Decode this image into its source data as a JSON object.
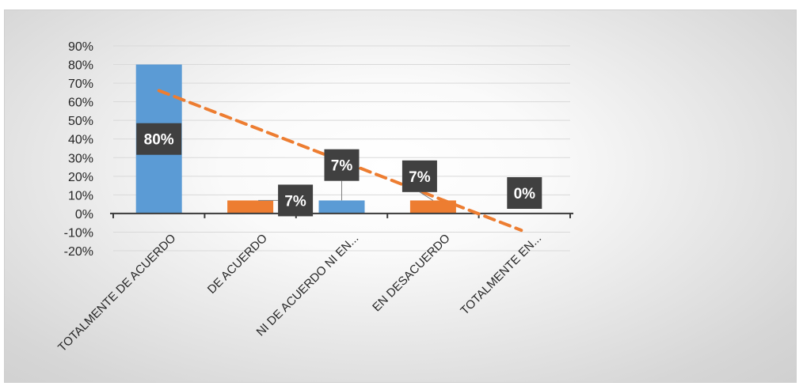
{
  "chart_data": {
    "type": "bar",
    "categories": [
      "TOTALMENTE DE ACUERDO",
      "DE ACUERDO",
      "NI DE ACUERDO NI EN...",
      "EN DESACUERDO",
      "TOTALMENTE EN..."
    ],
    "values": [
      80,
      7,
      7,
      7,
      0
    ],
    "data_labels": [
      "80%",
      "7%",
      "7%",
      "7%",
      "0%"
    ],
    "bar_colors": [
      "#5b9bd5",
      "#ed7d31",
      "#5b9bd5",
      "#ed7d31",
      "#5b9bd5"
    ],
    "ylim": [
      -20,
      90
    ],
    "y_ticks": [
      90,
      80,
      70,
      60,
      50,
      40,
      30,
      20,
      10,
      0,
      -10,
      -20
    ],
    "y_tick_labels": [
      "90%",
      "80%",
      "70%",
      "60%",
      "50%",
      "40%",
      "30%",
      "20%",
      "10%",
      "0%",
      "-10%",
      "-20%"
    ],
    "trendline": {
      "type": "linear",
      "color": "#ed7d31",
      "style": "dashed",
      "from": {
        "x": "TOTALMENTE DE ACUERDO",
        "y": 66
      },
      "to": {
        "x": "TOTALMENTE EN...",
        "y": -9
      }
    },
    "grid": true,
    "legend": "none",
    "title": "",
    "xlabel": "",
    "ylabel": ""
  }
}
